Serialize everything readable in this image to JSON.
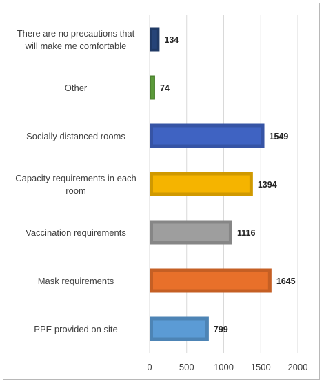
{
  "chart_data": {
    "type": "bar",
    "orientation": "horizontal",
    "categories": [
      "There are no precautions that will make me comfortable",
      "Other",
      "Socially distanced rooms",
      "Capacity requirements in each room",
      "Vaccination requirements",
      "Mask requirements",
      "PPE provided on site"
    ],
    "category_lines": [
      [
        "There are no precautions that",
        "will make me comfortable"
      ],
      [
        "Other"
      ],
      [
        "Socially distanced rooms"
      ],
      [
        "Capacity requirements in each",
        "room"
      ],
      [
        "Vaccination requirements"
      ],
      [
        "Mask requirements"
      ],
      [
        "PPE provided on site"
      ]
    ],
    "values": [
      134,
      74,
      1549,
      1394,
      1116,
      1645,
      799
    ],
    "data_labels": [
      "134",
      "74",
      "1549",
      "1394",
      "1116",
      "1645",
      "799"
    ],
    "colors": [
      "#264478",
      "#5b9a3a",
      "#3f63c2",
      "#f5b400",
      "#9e9e9e",
      "#e8702a",
      "#5b9bd5"
    ],
    "xlim": [
      0,
      2000
    ],
    "xticks": [
      0,
      500,
      1000,
      1500,
      2000
    ],
    "xtick_labels": [
      "0",
      "500",
      "1000",
      "1500",
      "2000"
    ],
    "grid": "vertical",
    "legend": "none",
    "title": "",
    "xlabel": "",
    "ylabel": ""
  }
}
